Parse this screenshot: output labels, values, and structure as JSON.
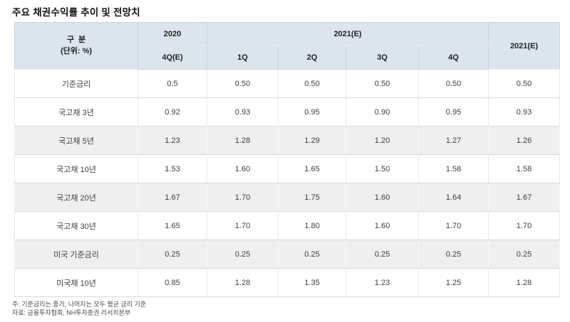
{
  "title": "주요 채권수익률 추이 및 전망치",
  "table": {
    "corner": {
      "line1": "구  분",
      "line2": "(단위: %)"
    },
    "col_groups": [
      {
        "label": "2020",
        "span": 1
      },
      {
        "label": "2021(E)",
        "span": 4
      }
    ],
    "last_col_label": "2021(E)",
    "sub_headers": [
      "4Q(E)",
      "1Q",
      "2Q",
      "3Q",
      "4Q"
    ],
    "rows": [
      {
        "label": "기준금리",
        "values": [
          "0.5",
          "0.50",
          "0.50",
          "0.50",
          "0.50",
          "0.50"
        ],
        "shaded": false
      },
      {
        "label": "국고채 3년",
        "values": [
          "0.92",
          "0.93",
          "0.95",
          "0.90",
          "0.95",
          "0.93"
        ],
        "shaded": false
      },
      {
        "label": "국고채 5년",
        "values": [
          "1.23",
          "1.28",
          "1.29",
          "1.20",
          "1.27",
          "1.26"
        ],
        "shaded": true
      },
      {
        "label": "국고채 10년",
        "values": [
          "1.53",
          "1.60",
          "1.65",
          "1.50",
          "1.58",
          "1.58"
        ],
        "shaded": false
      },
      {
        "label": "국고채 20년",
        "values": [
          "1.67",
          "1.70",
          "1.75",
          "1.60",
          "1.64",
          "1.67"
        ],
        "shaded": true
      },
      {
        "label": "국고채 30년",
        "values": [
          "1.65",
          "1.70",
          "1.80",
          "1.60",
          "1.70",
          "1.70"
        ],
        "shaded": false
      },
      {
        "label": "미국 기준금리",
        "values": [
          "0.25",
          "0.25",
          "0.25",
          "0.25",
          "0.25",
          "0.25"
        ],
        "shaded": true
      },
      {
        "label": "미국채 10년",
        "values": [
          "0.85",
          "1.28",
          "1.35",
          "1.23",
          "1.25",
          "1.28"
        ],
        "shaded": false
      }
    ]
  },
  "notes": {
    "note": "주: 기준금리는 종가, 나머지는 모두 평균 금리 기준",
    "source": "자료: 금융투자협회, NH투자증권 리서치본부"
  },
  "colors": {
    "header_bg": "#dce4ee",
    "shaded_row_bg": "#efefef",
    "body_border": "#d9d9d9",
    "header_border": "#cad3df",
    "title_text": "#111111",
    "cell_text": "#3d3d3d",
    "note_text": "#4a4a4a"
  },
  "chart_data": {
    "type": "table",
    "title": "주요 채권수익률 추이 및 전망치",
    "unit": "%",
    "columns": [
      "2020 4Q(E)",
      "2021(E) 1Q",
      "2021(E) 2Q",
      "2021(E) 3Q",
      "2021(E) 4Q",
      "2021(E)"
    ],
    "row_labels": [
      "기준금리",
      "국고채 3년",
      "국고채 5년",
      "국고채 10년",
      "국고채 20년",
      "국고채 30년",
      "미국 기준금리",
      "미국채 10년"
    ],
    "values": [
      [
        0.5,
        0.5,
        0.5,
        0.5,
        0.5,
        0.5
      ],
      [
        0.92,
        0.93,
        0.95,
        0.9,
        0.95,
        0.93
      ],
      [
        1.23,
        1.28,
        1.29,
        1.2,
        1.27,
        1.26
      ],
      [
        1.53,
        1.6,
        1.65,
        1.5,
        1.58,
        1.58
      ],
      [
        1.67,
        1.7,
        1.75,
        1.6,
        1.64,
        1.67
      ],
      [
        1.65,
        1.7,
        1.8,
        1.6,
        1.7,
        1.7
      ],
      [
        0.25,
        0.25,
        0.25,
        0.25,
        0.25,
        0.25
      ],
      [
        0.85,
        1.28,
        1.35,
        1.23,
        1.25,
        1.28
      ]
    ]
  }
}
